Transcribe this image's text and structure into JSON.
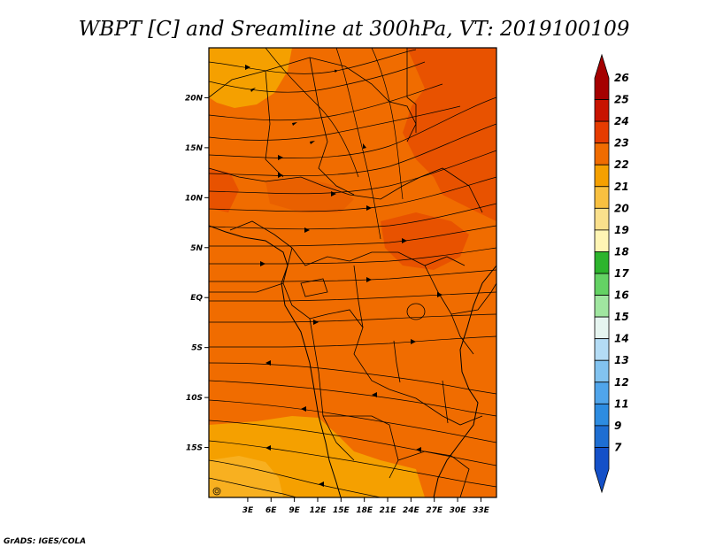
{
  "title": "WBPT [C] and Sreamline at 300hPa, VT: 2019100109",
  "credit": "GrADS: IGES/COLA",
  "map": {
    "lon_range": [
      -2,
      35
    ],
    "lat_range": [
      -20,
      25
    ],
    "lon_ticks": [
      {
        "value": 3,
        "label": "3E"
      },
      {
        "value": 6,
        "label": "6E"
      },
      {
        "value": 9,
        "label": "9E"
      },
      {
        "value": 12,
        "label": "12E"
      },
      {
        "value": 15,
        "label": "15E"
      },
      {
        "value": 18,
        "label": "18E"
      },
      {
        "value": 21,
        "label": "21E"
      },
      {
        "value": 24,
        "label": "24E"
      },
      {
        "value": 27,
        "label": "27E"
      },
      {
        "value": 30,
        "label": "30E"
      },
      {
        "value": 33,
        "label": "33E"
      }
    ],
    "lat_ticks": [
      {
        "value": 20,
        "label": "20N"
      },
      {
        "value": 15,
        "label": "15N"
      },
      {
        "value": 10,
        "label": "10N"
      },
      {
        "value": 5,
        "label": "5N"
      },
      {
        "value": 0,
        "label": "EQ"
      },
      {
        "value": -5,
        "label": "5S"
      },
      {
        "value": -10,
        "label": "10S"
      },
      {
        "value": -15,
        "label": "15S"
      }
    ],
    "background_color": "#f06c00",
    "warm_region_color": "#e85200",
    "cool_region_color": "#f5a000"
  },
  "colorbar": {
    "labels": [
      "26",
      "25",
      "24",
      "23",
      "22",
      "21",
      "20",
      "19",
      "18",
      "17",
      "16",
      "15",
      "14",
      "13",
      "12",
      "11",
      "9",
      "7"
    ],
    "colors": [
      "#a50000",
      "#c81400",
      "#e63c00",
      "#f06c00",
      "#f5a000",
      "#f8c040",
      "#fae08c",
      "#fff5b4",
      "#2db42d",
      "#64d264",
      "#a0e6a0",
      "#e6f5f0",
      "#b4dcf5",
      "#82c3f0",
      "#50a5eb",
      "#2d8ce1",
      "#1e6ed2",
      "#1450c8"
    ]
  }
}
